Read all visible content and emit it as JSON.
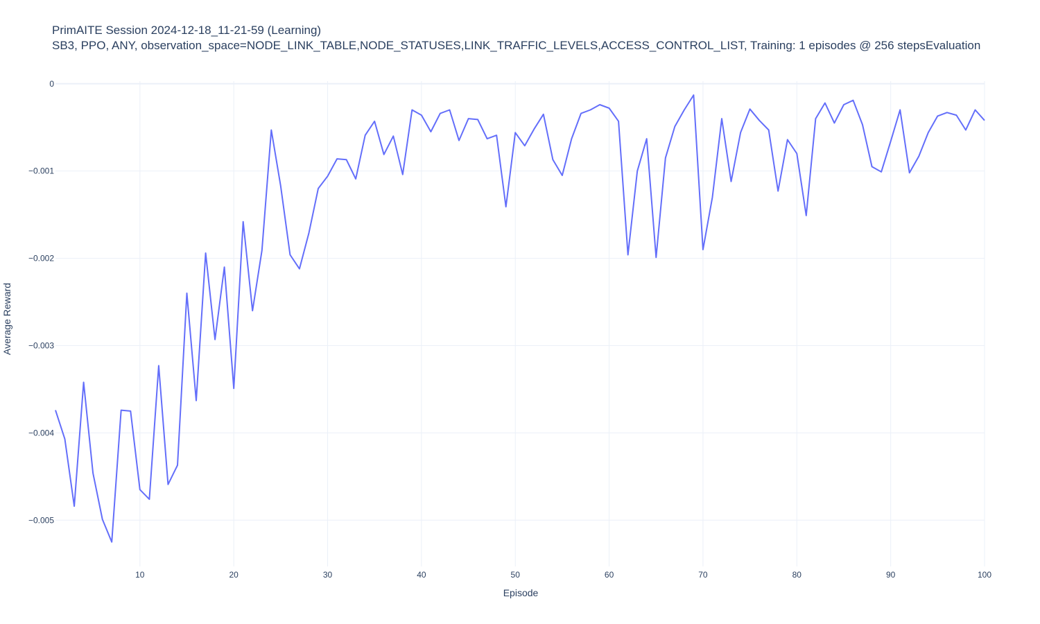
{
  "chart_data": {
    "type": "line",
    "title": "PrimAITE Session 2024-12-18_11-21-59 (Learning)",
    "subtitle": "SB3, PPO, ANY, observation_space=NODE_LINK_TABLE,NODE_STATUSES,LINK_TRAFFIC_LEVELS,ACCESS_CONTROL_LIST, Training: 1 episodes @ 256 stepsEvaluation",
    "xlabel": "Episode",
    "ylabel": "Average Reward",
    "xlim": [
      1,
      100
    ],
    "ylim": [
      -0.00553,
      3e-05
    ],
    "x_ticks": [
      10,
      20,
      30,
      40,
      50,
      60,
      70,
      80,
      90,
      100
    ],
    "x_tick_labels": [
      "10",
      "20",
      "30",
      "40",
      "50",
      "60",
      "70",
      "80",
      "90",
      "100"
    ],
    "y_ticks": [
      0,
      -0.001,
      -0.002,
      -0.003,
      -0.004,
      -0.005
    ],
    "y_tick_labels": [
      "0",
      "−0.001",
      "−0.002",
      "−0.003",
      "−0.004",
      "−0.005"
    ],
    "grid": true,
    "colors": {
      "line": "#636efa",
      "grid": "#ebf0f8",
      "text": "#2a3f5f"
    },
    "series": [
      {
        "x": [
          1,
          2,
          3,
          4,
          5,
          6,
          7,
          8,
          9,
          10,
          11,
          12,
          13,
          14,
          15,
          16,
          17,
          18,
          19,
          20,
          21,
          22,
          23,
          24,
          25,
          26,
          27,
          28,
          29,
          30,
          31,
          32,
          33,
          34,
          35,
          36,
          37,
          38,
          39,
          40,
          41,
          42,
          43,
          44,
          45,
          46,
          47,
          48,
          49,
          50,
          51,
          52,
          53,
          54,
          55,
          56,
          57,
          58,
          59,
          60,
          61,
          62,
          63,
          64,
          65,
          66,
          67,
          68,
          69,
          70,
          71,
          72,
          73,
          74,
          75,
          76,
          77,
          78,
          79,
          80,
          81,
          82,
          83,
          84,
          85,
          86,
          87,
          88,
          89,
          90,
          91,
          92,
          93,
          94,
          95,
          96,
          97,
          98,
          99,
          100
        ],
        "values": [
          -0.00374,
          -0.00407,
          -0.00484,
          -0.00342,
          -0.00446,
          -0.00499,
          -0.00525,
          -0.00374,
          -0.00375,
          -0.00465,
          -0.00476,
          -0.00323,
          -0.00459,
          -0.00437,
          -0.0024,
          -0.00363,
          -0.00194,
          -0.00293,
          -0.0021,
          -0.00349,
          -0.00158,
          -0.0026,
          -0.00191,
          -0.00053,
          -0.00117,
          -0.00196,
          -0.00212,
          -0.00171,
          -0.0012,
          -0.00106,
          -0.00086,
          -0.00087,
          -0.00109,
          -0.00059,
          -0.00043,
          -0.00081,
          -0.0006,
          -0.00104,
          -0.0003,
          -0.00036,
          -0.00055,
          -0.00034,
          -0.0003,
          -0.00065,
          -0.0004,
          -0.00041,
          -0.00063,
          -0.00059,
          -0.00141,
          -0.00056,
          -0.00071,
          -0.00052,
          -0.00035,
          -0.00087,
          -0.00105,
          -0.00063,
          -0.00034,
          -0.0003,
          -0.00024,
          -0.00028,
          -0.00043,
          -0.00196,
          -0.001,
          -0.00063,
          -0.00199,
          -0.00085,
          -0.00049,
          -0.0003,
          -0.00013,
          -0.0019,
          -0.0013,
          -0.0004,
          -0.00112,
          -0.00056,
          -0.00029,
          -0.00042,
          -0.00053,
          -0.00123,
          -0.00064,
          -0.0008,
          -0.00151,
          -0.0004,
          -0.00022,
          -0.00045,
          -0.00024,
          -0.00019,
          -0.00047,
          -0.00095,
          -0.00101,
          -0.00066,
          -0.0003,
          -0.00102,
          -0.00083,
          -0.00056,
          -0.00037,
          -0.00033,
          -0.00036,
          -0.00053,
          -0.0003,
          -0.00042
        ]
      }
    ]
  }
}
